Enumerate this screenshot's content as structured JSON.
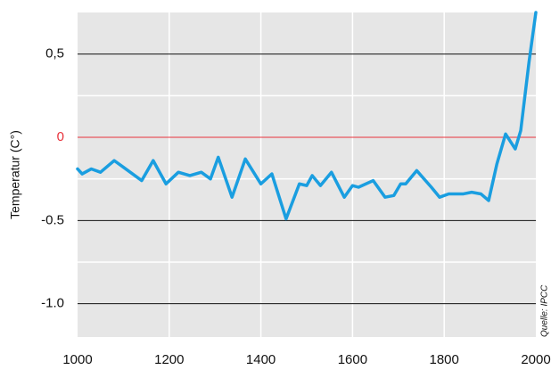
{
  "chart_data": {
    "type": "line",
    "ylabel": "Temperatur (C°)",
    "source": "Quelle: IPCC",
    "x": [
      1000,
      1010,
      1030,
      1050,
      1080,
      1100,
      1140,
      1165,
      1193,
      1220,
      1245,
      1270,
      1290,
      1307,
      1337,
      1366,
      1400,
      1424,
      1455,
      1484,
      1500,
      1512,
      1530,
      1554,
      1582,
      1600,
      1613,
      1645,
      1671,
      1690,
      1705,
      1716,
      1740,
      1772,
      1790,
      1810,
      1830,
      1842,
      1860,
      1880,
      1897,
      1915,
      1934,
      1955,
      1967,
      1985,
      2000
    ],
    "series": [
      {
        "name": "Temperatur",
        "color": "#1a9ee0",
        "values": [
          -0.19,
          -0.22,
          -0.19,
          -0.21,
          -0.14,
          -0.18,
          -0.26,
          -0.14,
          -0.28,
          -0.21,
          -0.23,
          -0.21,
          -0.25,
          -0.12,
          -0.36,
          -0.13,
          -0.28,
          -0.22,
          -0.49,
          -0.28,
          -0.29,
          -0.23,
          -0.29,
          -0.21,
          -0.36,
          -0.29,
          -0.3,
          -0.26,
          -0.36,
          -0.35,
          -0.28,
          -0.28,
          -0.2,
          -0.3,
          -0.36,
          -0.34,
          -0.34,
          -0.34,
          -0.33,
          -0.34,
          -0.38,
          -0.16,
          0.02,
          -0.07,
          0.04,
          0.45,
          0.75
        ]
      }
    ],
    "xlim": [
      1000,
      2000
    ],
    "xticks": [
      1000,
      1200,
      1400,
      1600,
      1800,
      2000
    ],
    "ylim": [
      -1.2,
      0.75
    ],
    "yticks": [
      {
        "value": 0.5,
        "label": "0,5"
      },
      0,
      -0.5,
      {
        "value": -1.0,
        "label": "-1.0"
      }
    ],
    "yminor": [
      0.25,
      -0.25,
      -0.75
    ],
    "zero_line_color": "#e8333c",
    "background": "#e6e6e6",
    "grid": true
  }
}
